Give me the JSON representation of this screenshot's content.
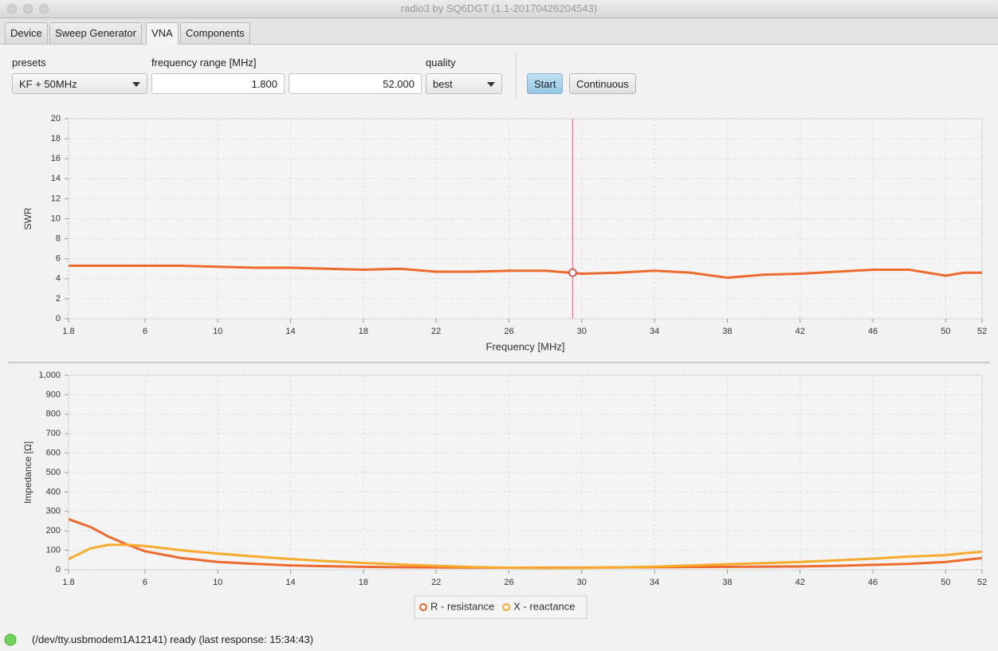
{
  "window": {
    "title": "radio3 by SQ6DGT (1.1-20170426204543)"
  },
  "tabs": [
    "Device",
    "Sweep Generator",
    "VNA",
    "Components"
  ],
  "controls": {
    "presets": {
      "label": "presets",
      "value": "KF + 50MHz"
    },
    "frequency_range": {
      "label": "frequency range [MHz]",
      "start": "1.800",
      "end": "52.000"
    },
    "quality": {
      "label": "quality",
      "value": "best"
    },
    "buttons": [
      "Start",
      "Continuous"
    ]
  },
  "charts": [
    {
      "type": "line",
      "y_label": "SWR",
      "x_label": "Frequency [MHz]",
      "xlim": [
        1.8,
        52
      ],
      "xticks": [
        1.8,
        6,
        10,
        14,
        18,
        22,
        26,
        30,
        34,
        38,
        42,
        46,
        50,
        52
      ],
      "ylim": [
        0,
        20
      ],
      "yticks": [
        0,
        2,
        4,
        6,
        8,
        10,
        12,
        14,
        16,
        18,
        20
      ],
      "grid": true,
      "x": [
        1.8,
        3,
        4,
        5,
        6,
        8,
        10,
        12,
        14,
        16,
        18,
        20,
        22,
        24,
        26,
        28,
        30,
        32,
        34,
        36,
        38,
        40,
        42,
        44,
        46,
        48,
        50,
        51,
        52
      ],
      "series": [
        {
          "color": "#ee6a2f",
          "values": [
            5.3,
            5.3,
            5.3,
            5.3,
            5.3,
            5.3,
            5.2,
            5.1,
            5.1,
            5.0,
            4.9,
            5.0,
            4.7,
            4.7,
            4.8,
            4.8,
            4.5,
            4.6,
            4.8,
            4.6,
            4.1,
            4.4,
            4.5,
            4.7,
            4.9,
            4.9,
            4.3,
            4.6,
            4.6
          ]
        }
      ],
      "cursor": {
        "x": 29.5,
        "y": 4.6,
        "color": "#e8666a"
      }
    },
    {
      "type": "line",
      "y_label": "Impedance [Ω]",
      "xlim": [
        1.8,
        52
      ],
      "xticks": [
        1.8,
        6,
        10,
        14,
        18,
        22,
        26,
        30,
        34,
        38,
        42,
        46,
        50,
        52
      ],
      "ylim": [
        0,
        1000
      ],
      "yticks": [
        0,
        100,
        200,
        300,
        400,
        500,
        600,
        700,
        800,
        900,
        {
          "value": 1000,
          "label": "1,000"
        }
      ],
      "grid": true,
      "x": [
        1.8,
        3,
        4,
        5,
        6,
        8,
        10,
        12,
        14,
        16,
        18,
        20,
        22,
        24,
        26,
        28,
        30,
        32,
        34,
        36,
        38,
        40,
        42,
        44,
        46,
        48,
        50,
        51,
        52
      ],
      "series": [
        {
          "name": "R - resistance",
          "color": "#ee6a2f",
          "values": [
            260,
            220,
            170,
            130,
            95,
            60,
            40,
            30,
            22,
            18,
            15,
            13,
            12,
            11,
            10,
            10,
            11,
            12,
            13,
            14,
            15,
            16,
            17,
            20,
            25,
            30,
            40,
            50,
            60
          ]
        },
        {
          "name": "X - reactance",
          "color": "#f6ab2a",
          "values": [
            55,
            110,
            128,
            128,
            122,
            100,
            83,
            68,
            55,
            44,
            35,
            27,
            20,
            14,
            10,
            8,
            9,
            12,
            16,
            22,
            28,
            34,
            40,
            48,
            57,
            68,
            75,
            85,
            92
          ]
        }
      ]
    }
  ],
  "status": "(/dev/tty.usbmodem1A12141) ready (last response: 15:34:43)"
}
